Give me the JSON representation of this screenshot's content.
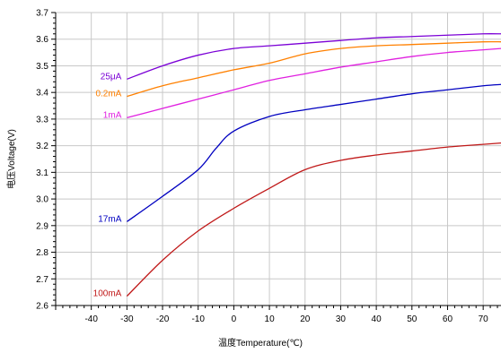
{
  "chart_data": {
    "type": "line",
    "title": "",
    "xlabel": "温度Temperature(℃)",
    "ylabel": "电压Voltage(V)",
    "xlim": [
      -50,
      75
    ],
    "ylim": [
      2.6,
      3.7
    ],
    "xticks": [
      -40,
      -30,
      -20,
      -10,
      0,
      10,
      20,
      30,
      40,
      50,
      60,
      70
    ],
    "yticks": [
      2.6,
      2.7,
      2.8,
      2.9,
      3.0,
      3.1,
      3.2,
      3.3,
      3.4,
      3.5,
      3.6,
      3.7
    ],
    "grid": true,
    "series": [
      {
        "name": "25μA",
        "color": "#7b00d6",
        "x": [
          -30,
          -20,
          -10,
          0,
          10,
          20,
          30,
          40,
          50,
          60,
          70,
          75
        ],
        "y": [
          3.45,
          3.5,
          3.54,
          3.565,
          3.575,
          3.585,
          3.595,
          3.605,
          3.61,
          3.615,
          3.62,
          3.62
        ]
      },
      {
        "name": "0.2mA",
        "color": "#ff8000",
        "x": [
          -30,
          -20,
          -10,
          0,
          10,
          20,
          30,
          40,
          50,
          60,
          70,
          75
        ],
        "y": [
          3.385,
          3.425,
          3.455,
          3.485,
          3.51,
          3.545,
          3.565,
          3.575,
          3.58,
          3.585,
          3.59,
          3.59
        ]
      },
      {
        "name": "1mA",
        "color": "#e020e0",
        "x": [
          -30,
          -20,
          -10,
          0,
          10,
          20,
          30,
          40,
          50,
          60,
          70,
          75
        ],
        "y": [
          3.305,
          3.34,
          3.375,
          3.41,
          3.445,
          3.47,
          3.495,
          3.515,
          3.535,
          3.55,
          3.56,
          3.565
        ]
      },
      {
        "name": "17mA",
        "color": "#0000c0",
        "x": [
          -30,
          -20,
          -10,
          -5,
          0,
          10,
          20,
          30,
          40,
          50,
          60,
          70,
          75
        ],
        "y": [
          2.915,
          3.01,
          3.11,
          3.19,
          3.255,
          3.31,
          3.335,
          3.355,
          3.375,
          3.395,
          3.41,
          3.425,
          3.43
        ]
      },
      {
        "name": "100mA",
        "color": "#c01818",
        "x": [
          -30,
          -20,
          -10,
          0,
          10,
          20,
          30,
          40,
          50,
          60,
          70,
          75
        ],
        "y": [
          2.635,
          2.77,
          2.88,
          2.965,
          3.04,
          3.11,
          3.145,
          3.165,
          3.18,
          3.195,
          3.205,
          3.21
        ]
      }
    ]
  }
}
